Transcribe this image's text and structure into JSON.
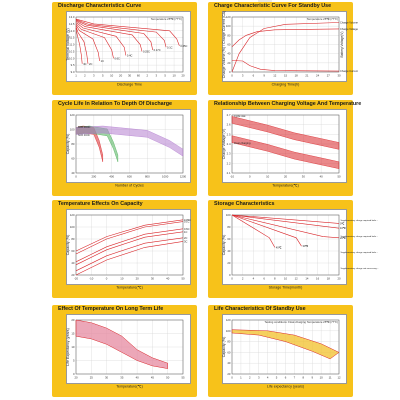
{
  "colors": {
    "frame": "#f7c21a",
    "red": "#d9262a",
    "pink": "#e58aa0",
    "green": "#4fb05a",
    "purple": "#b47fd0",
    "grid": "#cfcfcf",
    "axis": "#555555"
  },
  "charts": [
    {
      "id": "discharge",
      "title": "Discharge Characteristics Curve",
      "xlabel": "Discharge Time",
      "ylabel": "Terminal Voltage (V)",
      "note": "Temperature 25℃ (77°F)",
      "chart_data": {
        "type": "line",
        "x_ticks": [
          "1",
          "2",
          "3",
          "5",
          "10",
          "20",
          "30",
          "60",
          "2",
          "3",
          "5",
          "10",
          "20"
        ],
        "y_ticks": [
          "13.0",
          "12.5",
          "12.0",
          "11.5",
          "11.0",
          "10.5",
          "10.0",
          "9.5",
          "9.0"
        ],
        "series": [
          {
            "name": "3C",
            "points": [
              [
                0,
                12.2
              ],
              [
                0.1,
                11.8
              ],
              [
                0.4,
                11.0
              ],
              [
                0.6,
                10.2
              ],
              [
                0.7,
                9.6
              ]
            ]
          },
          {
            "name": "2C",
            "points": [
              [
                0,
                12.3
              ],
              [
                0.2,
                11.9
              ],
              [
                0.9,
                11.2
              ],
              [
                1.2,
                10.3
              ],
              [
                1.35,
                9.6
              ]
            ]
          },
          {
            "name": "1C",
            "points": [
              [
                0,
                12.4
              ],
              [
                0.4,
                12.0
              ],
              [
                1.9,
                11.4
              ],
              [
                2.5,
                10.4
              ],
              [
                2.65,
                9.8
              ]
            ]
          },
          {
            "name": "0.6C",
            "points": [
              [
                0,
                12.5
              ],
              [
                0.6,
                12.1
              ],
              [
                3.2,
                11.5
              ],
              [
                4.0,
                10.6
              ],
              [
                4.2,
                10.0
              ]
            ]
          },
          {
            "name": "0.4C",
            "points": [
              [
                0,
                12.6
              ],
              [
                0.8,
                12.2
              ],
              [
                4.5,
                11.6
              ],
              [
                5.4,
                10.8
              ],
              [
                5.6,
                10.2
              ]
            ]
          },
          {
            "name": "0.25C",
            "points": [
              [
                0,
                12.7
              ],
              [
                1,
                12.3
              ],
              [
                6.3,
                11.7
              ],
              [
                7.2,
                11.0
              ],
              [
                7.4,
                10.5
              ]
            ]
          },
          {
            "name": "0.17C",
            "points": [
              [
                0,
                12.75
              ],
              [
                1.2,
                12.4
              ],
              [
                7.6,
                11.8
              ],
              [
                8.4,
                11.2
              ],
              [
                8.6,
                10.6
              ]
            ]
          },
          {
            "name": "0.1C",
            "points": [
              [
                0,
                12.8
              ],
              [
                1.5,
                12.45
              ],
              [
                9.0,
                11.9
              ],
              [
                9.9,
                11.3
              ],
              [
                10.1,
                10.8
              ]
            ]
          },
          {
            "name": "0.05C",
            "points": [
              [
                0,
                12.85
              ],
              [
                2,
                12.5
              ],
              [
                10.5,
                12.0
              ],
              [
                11.3,
                11.4
              ],
              [
                11.6,
                10.9
              ]
            ]
          }
        ],
        "labels": [
          "3C",
          "2C",
          "1C",
          "0.6C",
          "0.4C",
          "0.25C",
          "0.17C",
          "0.1C",
          "0.05C"
        ]
      }
    },
    {
      "id": "standby_charge",
      "title": "Charge Characteristic Curve For Standby Use",
      "xlabel": "Charging Time(h)",
      "ylabel": "Charge Volume (%) / Charge Current (CA)",
      "ylabel2": "Battery Voltage(V)",
      "note": "Temperature 25℃ (77°F)",
      "chart_data": {
        "type": "line",
        "x_ticks": [
          "0",
          "3",
          "6",
          "9",
          "12",
          "15",
          "18",
          "21",
          "24",
          "27",
          "30"
        ],
        "y_ticks": [
          "120",
          "100",
          "80",
          "60",
          "40",
          "20",
          "0"
        ],
        "series": [
          {
            "name": "Charge Volume",
            "points": [
              [
                0,
                0
              ],
              [
                2,
                40
              ],
              [
                5,
                75
              ],
              [
                9,
                95
              ],
              [
                15,
                104
              ],
              [
                30,
                108
              ]
            ]
          },
          {
            "name": "Charge Voltage",
            "points": [
              [
                0,
                55
              ],
              [
                2,
                70
              ],
              [
                4,
                80
              ],
              [
                7,
                88
              ],
              [
                12,
                92
              ],
              [
                30,
                94
              ]
            ]
          },
          {
            "name": "Charge Current",
            "points": [
              [
                0,
                25
              ],
              [
                3,
                24
              ],
              [
                5,
                14
              ],
              [
                8,
                6
              ],
              [
                12,
                3
              ],
              [
                30,
                2
              ]
            ]
          }
        ],
        "labels": [
          "Charge Volume",
          "Charge Voltage",
          "Charge Current",
          "Voltage 2.275V/Cell",
          "Current 0.1CA"
        ]
      }
    },
    {
      "id": "cycle_life",
      "title": "Cycle Life In Relation To Depth Of Discharge",
      "xlabel": "Number of Cycles",
      "ylabel": "Capacity (%)",
      "chart_data": {
        "type": "area",
        "x_ticks": [
          "0",
          "200",
          "400",
          "600",
          "800",
          "1000",
          "1200"
        ],
        "y_ticks": [
          "120",
          "100",
          "80",
          "60",
          "40"
        ],
        "series": [
          {
            "name": "100% DOD",
            "band": [
              [
                0,
                98
              ],
              [
                80,
                100
              ],
              [
                200,
                98
              ],
              [
                260,
                80
              ],
              [
                300,
                60
              ]
            ]
          },
          {
            "name": "50% DOD",
            "band": [
              [
                0,
                98
              ],
              [
                150,
                100
              ],
              [
                350,
                96
              ],
              [
                420,
                78
              ],
              [
                470,
                60
              ]
            ]
          },
          {
            "name": "30% DOD",
            "band": [
              [
                0,
                98
              ],
              [
                300,
                100
              ],
              [
                800,
                94
              ],
              [
                1050,
                80
              ],
              [
                1200,
                68
              ]
            ]
          }
        ],
        "labels": [
          "100% DOD",
          "50% DOD",
          "30% DOD"
        ]
      }
    },
    {
      "id": "charge_temp",
      "title": "Relationship Between Charging Voltage And Temperature",
      "xlabel": "Temperature(℃)",
      "ylabel": "Charge Voltage (V)",
      "chart_data": {
        "type": "area",
        "x_ticks": [
          "-10",
          "0",
          "10",
          "20",
          "30",
          "40",
          "50"
        ],
        "y_ticks": [
          "2.7",
          "2.6",
          "2.5",
          "2.4",
          "2.3",
          "2.2",
          "2.1"
        ],
        "series": [
          {
            "name": "Cycle use",
            "band": [
              [
                -10,
                2.65
              ],
              [
                10,
                2.56
              ],
              [
                25,
                2.48
              ],
              [
                40,
                2.42
              ],
              [
                50,
                2.38
              ]
            ]
          },
          {
            "name": "Float charging",
            "band": [
              [
                -10,
                2.45
              ],
              [
                10,
                2.36
              ],
              [
                25,
                2.28
              ],
              [
                40,
                2.22
              ],
              [
                50,
                2.18
              ]
            ]
          }
        ],
        "labels": [
          "Cycle use 2.43~2.47V/Cell(25℃)",
          "Float charging 2.28~2.30V/Cell(25℃)"
        ]
      }
    },
    {
      "id": "temp_capacity",
      "title": "Temperature Effects On Capacity",
      "xlabel": "Temperature(℃)",
      "ylabel": "Capacity (%)",
      "chart_data": {
        "type": "line",
        "x_ticks": [
          "-20",
          "-10",
          "0",
          "10",
          "20",
          "30",
          "40",
          "50"
        ],
        "y_ticks": [
          "120",
          "100",
          "80",
          "60",
          "40",
          "20"
        ],
        "series": [
          {
            "name": "0.05C",
            "points": [
              [
                -20,
                60
              ],
              [
                0,
                84
              ],
              [
                25,
                103
              ],
              [
                50,
                112
              ]
            ]
          },
          {
            "name": "0.1C",
            "points": [
              [
                -20,
                55
              ],
              [
                0,
                80
              ],
              [
                25,
                100
              ],
              [
                50,
                109
              ]
            ]
          },
          {
            "name": "0.6C",
            "points": [
              [
                -20,
                42
              ],
              [
                0,
                67
              ],
              [
                25,
                88
              ],
              [
                50,
                97
              ]
            ]
          },
          {
            "name": "1C",
            "points": [
              [
                -20,
                37
              ],
              [
                0,
                62
              ],
              [
                25,
                83
              ],
              [
                50,
                92
              ]
            ]
          },
          {
            "name": "2C",
            "points": [
              [
                -20,
                27
              ],
              [
                0,
                52
              ],
              [
                25,
                73
              ],
              [
                50,
                82
              ]
            ]
          },
          {
            "name": "3C",
            "points": [
              [
                -20,
                20
              ],
              [
                0,
                45
              ],
              [
                25,
                66
              ],
              [
                50,
                76
              ]
            ]
          }
        ],
        "labels": [
          "0.05C",
          "0.1C",
          "0.6C",
          "1C",
          "2C",
          "3C"
        ]
      }
    },
    {
      "id": "storage",
      "title": "Storage Characteristics",
      "xlabel": "Storage Time(month)",
      "ylabel": "Capacity (%)",
      "chart_data": {
        "type": "line",
        "x_ticks": [
          "0",
          "2",
          "4",
          "6",
          "8",
          "10",
          "12",
          "14",
          "16",
          "18",
          "20"
        ],
        "y_ticks": [
          "100",
          "80",
          "60",
          "40",
          "20",
          "0"
        ],
        "series": [
          {
            "name": "0℃",
            "points": [
              [
                0,
                100
              ],
              [
                20,
                86
              ]
            ]
          },
          {
            "name": "10℃",
            "points": [
              [
                0,
                100
              ],
              [
                20,
                78
              ]
            ]
          },
          {
            "name": "20℃",
            "points": [
              [
                0,
                100
              ],
              [
                17,
                64
              ],
              [
                20,
                62
              ]
            ]
          },
          {
            "name": "30℃",
            "points": [
              [
                0,
                100
              ],
              [
                12,
                62
              ],
              [
                13,
                48
              ]
            ]
          },
          {
            "name": "40℃",
            "points": [
              [
                0,
                100
              ],
              [
                7,
                62
              ],
              [
                8,
                46
              ]
            ]
          }
        ],
        "labels": [
          "0℃",
          "10℃",
          "20℃",
          "30℃",
          "40℃"
        ],
        "notes": [
          "Supplementary charge required before use. Optional charging way. Ref charge before use. Within 48% of sale.",
          "Supplementary charge required before use. Two hour charging at SLA capacity",
          "Supplementary charge required before use. The battery may be permanently damaged.",
          "Supplementary charge not necessary."
        ]
      }
    },
    {
      "id": "temp_life",
      "title": "Effect Of Temperature On Long Term Life",
      "xlabel": "Temperature(℃)",
      "ylabel": "Life Expectancy (years)",
      "chart_data": {
        "type": "area",
        "x_ticks": [
          "20",
          "25",
          "30",
          "35",
          "40",
          "45",
          "50",
          "55"
        ],
        "y_ticks": [
          "20",
          "15",
          "10",
          "5",
          "0"
        ],
        "series": [
          {
            "name": "life range",
            "band_upper": [
              [
                20,
                20
              ],
              [
                25,
                19
              ],
              [
                30,
                17
              ],
              [
                35,
                14
              ],
              [
                40,
                9
              ],
              [
                45,
                6
              ],
              [
                50,
                4
              ]
            ],
            "band_lower": [
              [
                20,
                14
              ],
              [
                25,
                13
              ],
              [
                30,
                11
              ],
              [
                35,
                8
              ],
              [
                40,
                5
              ],
              [
                45,
                3
              ],
              [
                50,
                2
              ]
            ]
          }
        ]
      }
    },
    {
      "id": "standby_life",
      "title": "Life Characteristics Of Standby Use",
      "xlabel": "Life expectancy (years)",
      "ylabel": "Capacity (%)",
      "note": "Testing conditions: Float charging   Temperature 25℃ (77°F)",
      "chart_data": {
        "type": "area",
        "x_ticks": [
          "0",
          "1",
          "2",
          "3",
          "4",
          "5",
          "6",
          "7",
          "8",
          "9",
          "10",
          "11",
          "12"
        ],
        "y_ticks": [
          "120",
          "100",
          "80",
          "60",
          "40",
          "20"
        ],
        "series": [
          {
            "name": "life band",
            "band_upper": [
              [
                0,
                102
              ],
              [
                4,
                100
              ],
              [
                7,
                92
              ],
              [
                10,
                76
              ],
              [
                12,
                60
              ]
            ],
            "band_lower": [
              [
                0,
                96
              ],
              [
                3,
                92
              ],
              [
                6,
                80
              ],
              [
                9,
                62
              ],
              [
                11,
                48
              ]
            ]
          }
        ]
      }
    }
  ]
}
